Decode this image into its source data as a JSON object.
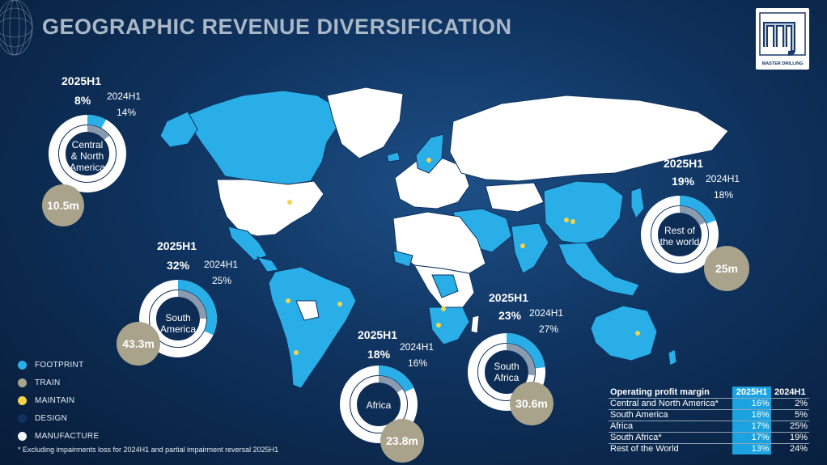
{
  "title": "GEOGRAPHIC REVENUE DIVERSIFICATION",
  "logo": {
    "text": "MASTER DRILLING",
    "mark": "mj",
    "tm": "TM"
  },
  "regions": [
    {
      "key": "cna",
      "name_line1": "Central",
      "name_line2": "& North",
      "name_line3": "America",
      "period_current": "2025H1",
      "pct_current": "8%",
      "period_prior": "2024H1",
      "pct_prior": "14%",
      "amount": "10.5m",
      "current_share": 0.08,
      "prior_share": 0.14
    },
    {
      "key": "sa",
      "name_line1": "South",
      "name_line2": "America",
      "name_line3": "",
      "period_current": "2025H1",
      "pct_current": "32%",
      "period_prior": "2024H1",
      "pct_prior": "25%",
      "amount": "43.3m",
      "current_share": 0.32,
      "prior_share": 0.25
    },
    {
      "key": "af",
      "name_line1": "Africa",
      "name_line2": "",
      "name_line3": "",
      "period_current": "2025H1",
      "pct_current": "18%",
      "period_prior": "2024H1",
      "pct_prior": "16%",
      "amount": "23.8m",
      "current_share": 0.18,
      "prior_share": 0.16
    },
    {
      "key": "saf",
      "name_line1": "South",
      "name_line2": "Africa",
      "name_line3": "",
      "period_current": "2025H1",
      "pct_current": "23%",
      "period_prior": "2024H1",
      "pct_prior": "27%",
      "amount": "30.6m",
      "current_share": 0.23,
      "prior_share": 0.27
    },
    {
      "key": "row",
      "name_line1": "Rest of",
      "name_line2": "the world",
      "name_line3": "",
      "period_current": "2025H1",
      "pct_current": "19%",
      "period_prior": "2024H1",
      "pct_prior": "18%",
      "amount": "25m",
      "current_share": 0.19,
      "prior_share": 0.18
    }
  ],
  "legend": [
    {
      "label": "FOOTPRINT",
      "color": "#29aee8"
    },
    {
      "label": "TRAIN",
      "color": "#a9a38c"
    },
    {
      "label": "MAINTAIN",
      "color": "#f2d34a"
    },
    {
      "label": "DESIGN",
      "color": "#12305e"
    },
    {
      "label": "MANUFACTURE",
      "color": "#f2f4f7"
    }
  ],
  "footnote": "* Excluding impairments loss for 2024H1 and partial impairment reversal 2025H1",
  "operating_profit_margin": {
    "header": "Operating profit margin",
    "col1": "2025H1",
    "col2": "2024H1",
    "rows": [
      {
        "label": "Central and North America*",
        "v1": "16%",
        "v2": "2%"
      },
      {
        "label": "South America",
        "v1": "18%",
        "v2": "5%"
      },
      {
        "label": "Africa",
        "v1": "17%",
        "v2": "25%"
      },
      {
        "label": "South Africa*",
        "v1": "17%",
        "v2": "19%"
      },
      {
        "label": "Rest of the World",
        "v1": "13%",
        "v2": "24%"
      }
    ]
  },
  "colors": {
    "footprint": "#29aee8",
    "prior_ring": "#8a9bb0",
    "ring_bg": "#ffffff",
    "amount_bg": "#a9a38c"
  }
}
